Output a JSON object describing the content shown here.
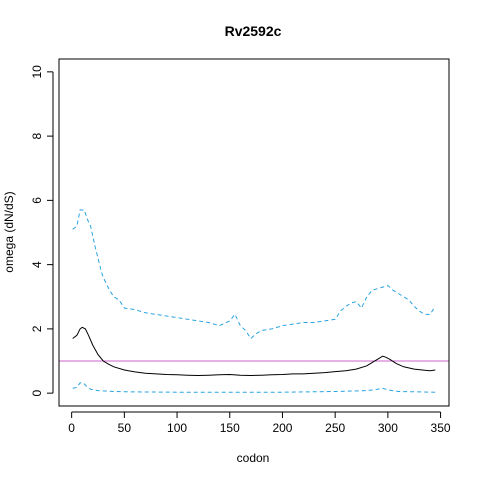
{
  "chart_data": {
    "type": "line",
    "title": "Rv2592c",
    "xlabel": "codon",
    "ylabel": "omega (dN/dS)",
    "xlim": [
      -12,
      358
    ],
    "ylim": [
      -0.4,
      10.4
    ],
    "xticks": [
      0,
      50,
      100,
      150,
      200,
      250,
      300,
      350
    ],
    "yticks": [
      0,
      2,
      4,
      6,
      8,
      10
    ],
    "grid": false,
    "reference_line": {
      "y": 1,
      "color": "#cc66cc"
    },
    "series": [
      {
        "role": "estimate",
        "color": "#000000",
        "style": "solid",
        "points": [
          [
            1,
            1.7
          ],
          [
            5,
            1.8
          ],
          [
            8,
            2.0
          ],
          [
            10,
            2.05
          ],
          [
            13,
            2.0
          ],
          [
            16,
            1.8
          ],
          [
            20,
            1.5
          ],
          [
            25,
            1.2
          ],
          [
            30,
            1.0
          ],
          [
            35,
            0.9
          ],
          [
            40,
            0.82
          ],
          [
            50,
            0.72
          ],
          [
            60,
            0.66
          ],
          [
            70,
            0.62
          ],
          [
            80,
            0.6
          ],
          [
            90,
            0.58
          ],
          [
            100,
            0.57
          ],
          [
            110,
            0.56
          ],
          [
            120,
            0.55
          ],
          [
            130,
            0.56
          ],
          [
            140,
            0.57
          ],
          [
            150,
            0.58
          ],
          [
            160,
            0.56
          ],
          [
            170,
            0.55
          ],
          [
            180,
            0.56
          ],
          [
            190,
            0.57
          ],
          [
            200,
            0.58
          ],
          [
            210,
            0.6
          ],
          [
            220,
            0.6
          ],
          [
            230,
            0.62
          ],
          [
            240,
            0.64
          ],
          [
            250,
            0.67
          ],
          [
            260,
            0.7
          ],
          [
            270,
            0.75
          ],
          [
            280,
            0.85
          ],
          [
            285,
            0.95
          ],
          [
            290,
            1.05
          ],
          [
            295,
            1.15
          ],
          [
            298,
            1.12
          ],
          [
            302,
            1.05
          ],
          [
            308,
            0.92
          ],
          [
            315,
            0.82
          ],
          [
            325,
            0.75
          ],
          [
            335,
            0.71
          ],
          [
            340,
            0.7
          ],
          [
            345,
            0.72
          ]
        ]
      },
      {
        "role": "upper",
        "color": "#29a3e0",
        "style": "dashed",
        "points": [
          [
            1,
            5.1
          ],
          [
            5,
            5.2
          ],
          [
            8,
            5.7
          ],
          [
            12,
            5.7
          ],
          [
            15,
            5.4
          ],
          [
            18,
            5.2
          ],
          [
            20,
            4.9
          ],
          [
            22,
            4.6
          ],
          [
            25,
            4.2
          ],
          [
            28,
            3.8
          ],
          [
            30,
            3.6
          ],
          [
            33,
            3.4
          ],
          [
            36,
            3.2
          ],
          [
            40,
            3.0
          ],
          [
            45,
            2.9
          ],
          [
            50,
            2.65
          ],
          [
            60,
            2.6
          ],
          [
            70,
            2.5
          ],
          [
            80,
            2.45
          ],
          [
            90,
            2.4
          ],
          [
            100,
            2.35
          ],
          [
            110,
            2.3
          ],
          [
            120,
            2.25
          ],
          [
            130,
            2.2
          ],
          [
            140,
            2.1
          ],
          [
            150,
            2.25
          ],
          [
            155,
            2.45
          ],
          [
            160,
            2.1
          ],
          [
            165,
            1.95
          ],
          [
            170,
            1.7
          ],
          [
            175,
            1.85
          ],
          [
            180,
            1.95
          ],
          [
            190,
            2.0
          ],
          [
            200,
            2.1
          ],
          [
            210,
            2.15
          ],
          [
            220,
            2.2
          ],
          [
            230,
            2.2
          ],
          [
            240,
            2.25
          ],
          [
            250,
            2.3
          ],
          [
            255,
            2.55
          ],
          [
            260,
            2.7
          ],
          [
            265,
            2.8
          ],
          [
            270,
            2.85
          ],
          [
            275,
            2.65
          ],
          [
            280,
            3.0
          ],
          [
            285,
            3.2
          ],
          [
            290,
            3.25
          ],
          [
            295,
            3.3
          ],
          [
            300,
            3.35
          ],
          [
            305,
            3.2
          ],
          [
            310,
            3.1
          ],
          [
            320,
            2.9
          ],
          [
            325,
            2.7
          ],
          [
            330,
            2.55
          ],
          [
            335,
            2.45
          ],
          [
            340,
            2.45
          ],
          [
            345,
            2.7
          ]
        ]
      },
      {
        "role": "lower",
        "color": "#29a3e0",
        "style": "dashed",
        "points": [
          [
            1,
            0.15
          ],
          [
            5,
            0.18
          ],
          [
            8,
            0.32
          ],
          [
            11,
            0.32
          ],
          [
            14,
            0.22
          ],
          [
            18,
            0.12
          ],
          [
            25,
            0.08
          ],
          [
            40,
            0.05
          ],
          [
            60,
            0.04
          ],
          [
            100,
            0.03
          ],
          [
            150,
            0.03
          ],
          [
            200,
            0.03
          ],
          [
            250,
            0.05
          ],
          [
            280,
            0.08
          ],
          [
            290,
            0.12
          ],
          [
            295,
            0.15
          ],
          [
            300,
            0.1
          ],
          [
            310,
            0.05
          ],
          [
            330,
            0.04
          ],
          [
            345,
            0.03
          ]
        ]
      }
    ]
  }
}
